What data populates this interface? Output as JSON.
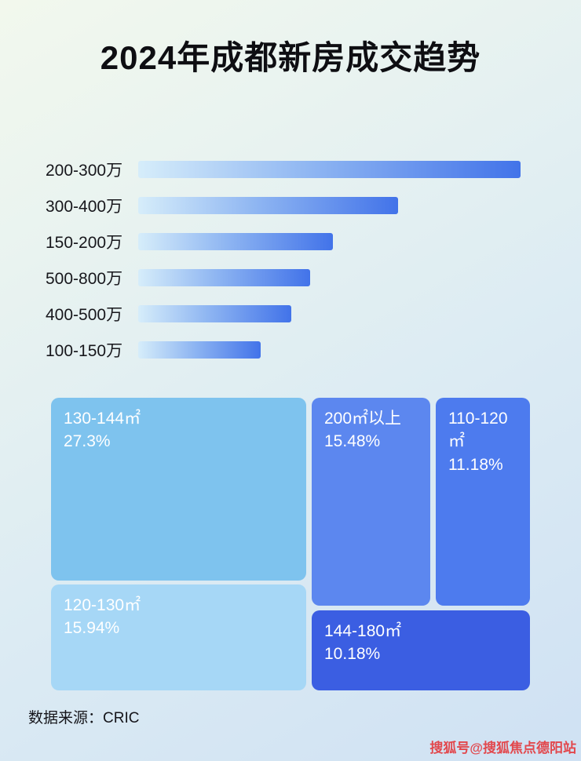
{
  "page": {
    "title": "2024年成都新房成交趋势",
    "footer": "数据来源：CRIC",
    "watermark": "搜狐号@搜狐焦点德阳站"
  },
  "chart_data": [
    {
      "type": "bar",
      "orientation": "horizontal",
      "axis_shown": false,
      "categories": [
        "200-300万",
        "300-400万",
        "150-200万",
        "500-800万",
        "400-500万",
        "100-150万"
      ],
      "values_relative_pct": [
        100,
        68,
        51,
        45,
        40,
        32
      ],
      "bar_gradient_start": "#d6edfa",
      "bar_gradient_end": "#4273e9"
    },
    {
      "type": "treemap",
      "items": [
        {
          "label": "130-144㎡",
          "pct_text": "27.3%",
          "value": 27.3,
          "color": "#7ec3ee"
        },
        {
          "label": "200㎡以上",
          "pct_text": "15.48%",
          "value": 15.48,
          "color": "#5c87ef"
        },
        {
          "label": "110-120㎡",
          "pct_text": "11.18%",
          "value": 11.18,
          "color": "#4d7bee"
        },
        {
          "label": "120-130㎡",
          "pct_text": "15.94%",
          "value": 15.94,
          "color": "#a6d7f6"
        },
        {
          "label": "144-180㎡",
          "pct_text": "10.18%",
          "value": 10.18,
          "color": "#3b5ee2"
        }
      ]
    }
  ]
}
